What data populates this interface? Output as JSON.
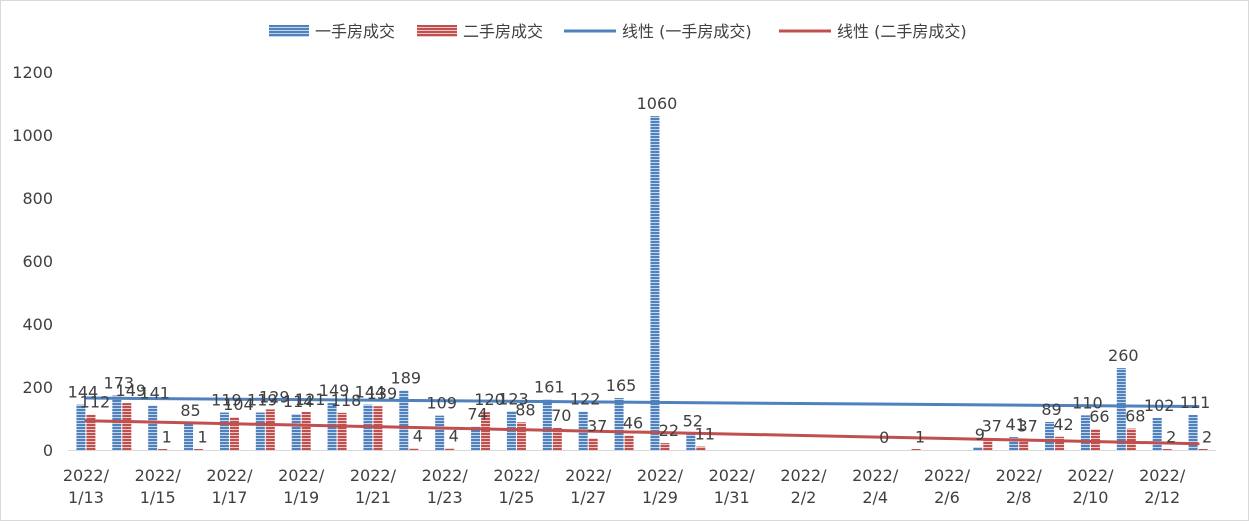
{
  "chart_data": {
    "type": "bar",
    "title": "",
    "xlabel": "",
    "ylabel": "",
    "ylim": [
      0,
      1200
    ],
    "yticks": [
      0,
      200,
      400,
      600,
      800,
      1000,
      1200
    ],
    "grid": false,
    "legend_position": "top",
    "categories": [
      "2022/1/13",
      "2022/1/14",
      "2022/1/15",
      "2022/1/16",
      "2022/1/17",
      "2022/1/18",
      "2022/1/19",
      "2022/1/20",
      "2022/1/21",
      "2022/1/22",
      "2022/1/23",
      "2022/1/24",
      "2022/1/25",
      "2022/1/26",
      "2022/1/27",
      "2022/1/28",
      "2022/1/29",
      "2022/1/30",
      "2022/1/31",
      "2022/2/1",
      "2022/2/2",
      "2022/2/3",
      "2022/2/4",
      "2022/2/5",
      "2022/2/6",
      "2022/2/7",
      "2022/2/8",
      "2022/2/9",
      "2022/2/10",
      "2022/2/11",
      "2022/2/12",
      "2022/2/13"
    ],
    "tick_labels": [
      {
        "line1": "2022/",
        "line2": "1/13"
      },
      {
        "line1": "2022/",
        "line2": "1/15"
      },
      {
        "line1": "2022/",
        "line2": "1/17"
      },
      {
        "line1": "2022/",
        "line2": "1/19"
      },
      {
        "line1": "2022/",
        "line2": "1/21"
      },
      {
        "line1": "2022/",
        "line2": "1/23"
      },
      {
        "line1": "2022/",
        "line2": "1/25"
      },
      {
        "line1": "2022/",
        "line2": "1/27"
      },
      {
        "line1": "2022/",
        "line2": "1/29"
      },
      {
        "line1": "2022/",
        "line2": "1/31"
      },
      {
        "line1": "2022/",
        "line2": "2/2"
      },
      {
        "line1": "2022/",
        "line2": "2/4"
      },
      {
        "line1": "2022/",
        "line2": "2/6"
      },
      {
        "line1": "2022/",
        "line2": "2/8"
      },
      {
        "line1": "2022/",
        "line2": "2/10"
      },
      {
        "line1": "2022/",
        "line2": "2/12"
      }
    ],
    "series": [
      {
        "name": "一手房成交",
        "color": "#4f81bd",
        "values": [
          144,
          173,
          141,
          85,
          119,
          119,
          114,
          149,
          144,
          189,
          109,
          74,
          123,
          161,
          122,
          165,
          1060,
          52,
          null,
          null,
          null,
          null,
          null,
          null,
          null,
          9,
          41,
          89,
          110,
          260,
          102,
          111
        ]
      },
      {
        "name": "二手房成交",
        "color": "#c0504d",
        "values": [
          112,
          149,
          1,
          1,
          104,
          129,
          121,
          118,
          139,
          4,
          4,
          120,
          88,
          70,
          37,
          46,
          22,
          11,
          null,
          null,
          null,
          null,
          0,
          1,
          null,
          37,
          37,
          42,
          66,
          68,
          2,
          2
        ]
      }
    ],
    "trendlines": [
      {
        "name": "线性 (一手房成交)",
        "color": "#4f81bd",
        "start": 165,
        "end": 138
      },
      {
        "name": "线性 (二手房成交)",
        "color": "#c0504d",
        "start": 93,
        "end": 20
      }
    ]
  }
}
